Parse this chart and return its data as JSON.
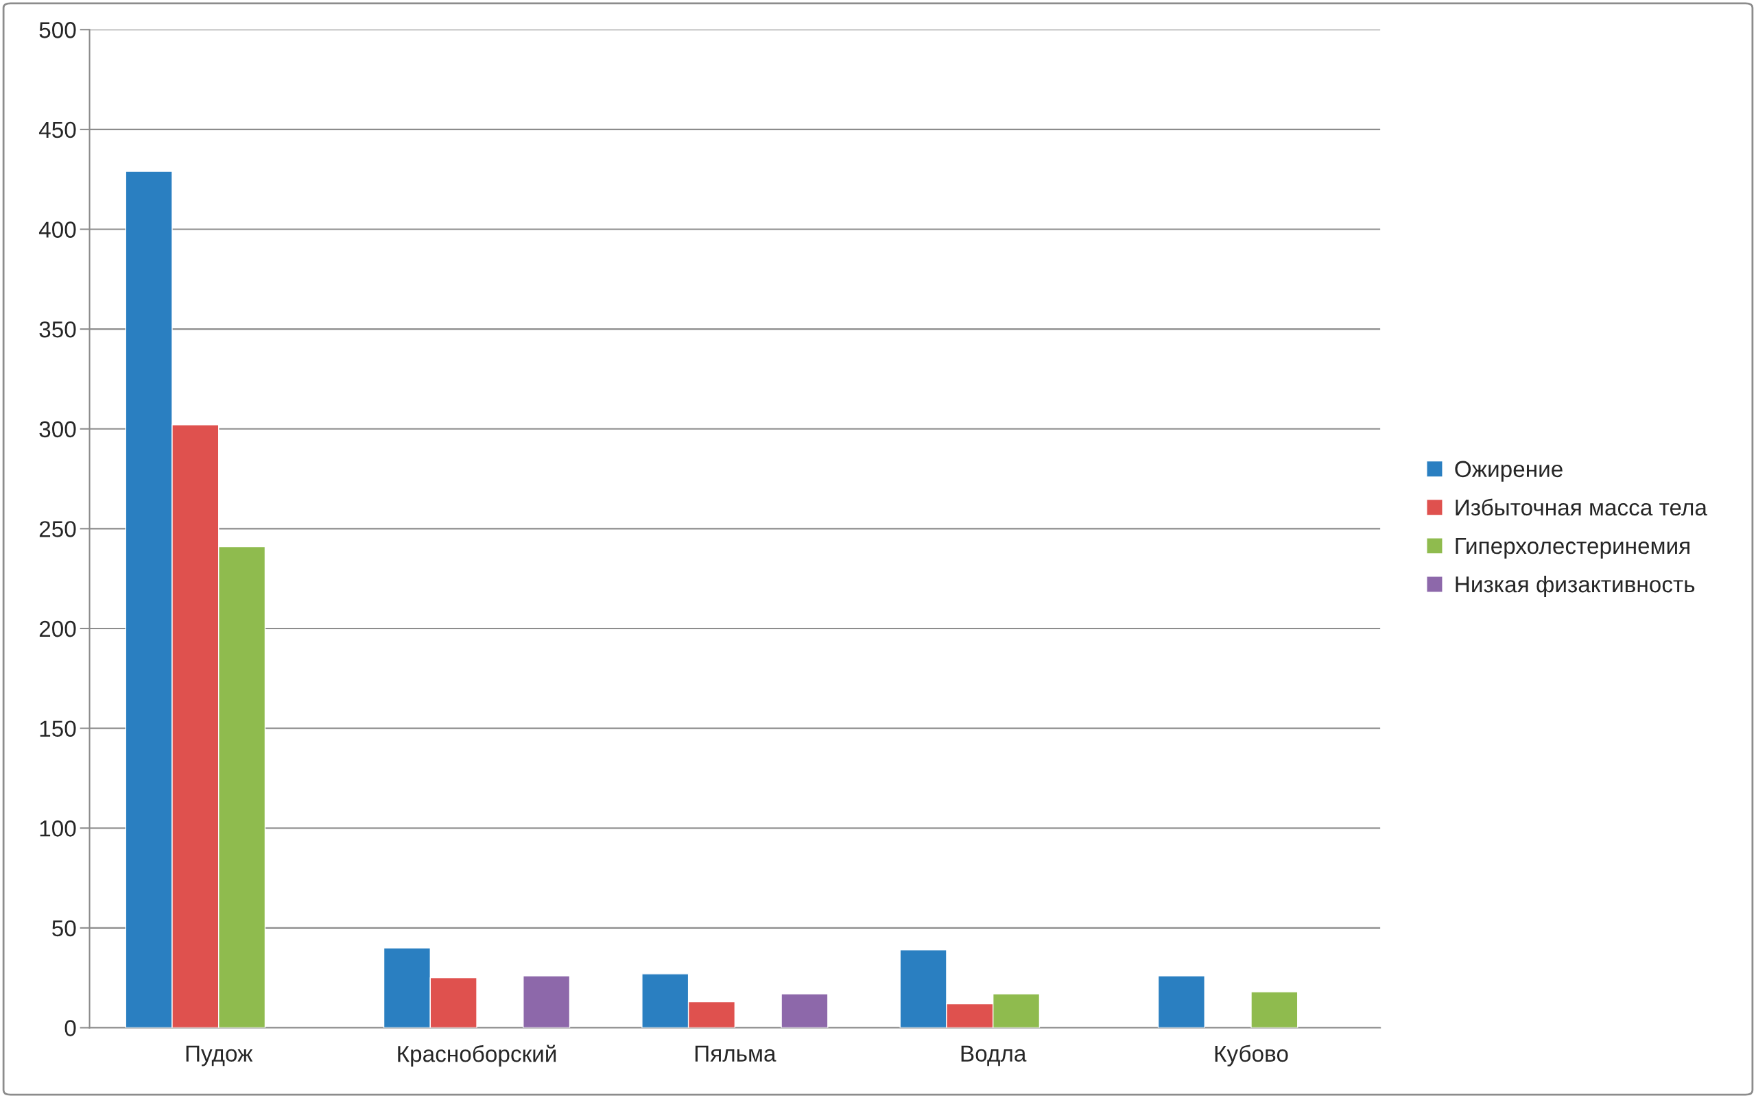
{
  "chart_data": {
    "type": "bar",
    "categories": [
      "Пудож",
      "Красноборский",
      "Пяльма",
      "Водла",
      "Кубово"
    ],
    "series": [
      {
        "name": "Ожирение",
        "color": "#2a7fc1",
        "values": [
          429,
          40,
          27,
          39,
          26
        ]
      },
      {
        "name": "Избыточная масса тела",
        "color": "#df514e",
        "values": [
          302,
          25,
          13,
          12,
          null
        ]
      },
      {
        "name": "Гиперхолестеринемия",
        "color": "#8fbb4e",
        "values": [
          241,
          null,
          null,
          17,
          18
        ]
      },
      {
        "name": "Низкая физактивность",
        "color": "#8d68aa",
        "values": [
          null,
          26,
          17,
          null,
          null
        ]
      }
    ],
    "ylim": [
      0,
      500
    ],
    "yticks": [
      0,
      50,
      100,
      150,
      200,
      250,
      300,
      350,
      400,
      450,
      500
    ],
    "grid": "y",
    "legend": "right"
  }
}
